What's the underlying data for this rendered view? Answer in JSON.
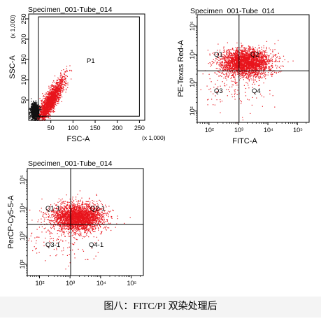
{
  "caption": "图八：FITC/PI 双染处理后",
  "chart_data": [
    {
      "type": "scatter",
      "title": "Specimen_001-Tube_014",
      "xlabel": "FSC-A",
      "ylabel": "SSC-A",
      "x_unit": "(x 1,000)",
      "y_unit": "(x 1,000)",
      "xscale": "linear",
      "yscale": "linear",
      "xlim": [
        0,
        262
      ],
      "ylim": [
        0,
        262
      ],
      "x_ticks": [
        50,
        100,
        150,
        200,
        250
      ],
      "y_ticks": [
        50,
        100,
        150,
        200,
        250
      ],
      "x_tick_labels": [
        "50",
        "100",
        "150",
        "200",
        "250"
      ],
      "y_tick_labels": [
        "50",
        "100",
        "150",
        "200",
        "250"
      ],
      "gate": {
        "name": "P1",
        "x_min": 22,
        "x_max": 250,
        "y_min": 10,
        "y_max": 255
      },
      "regions": [
        "P1"
      ],
      "grid": false,
      "colors": {
        "gated": "#e8141c",
        "ungated": "#111111"
      },
      "populations": [
        {
          "color": "gated",
          "count": 2200,
          "x_center": 40,
          "x_sd": 15,
          "y_from": "x",
          "slope": 1.6,
          "y_sd": 14
        },
        {
          "color": "ungated",
          "count": 900,
          "x_center": 13,
          "x_sd": 5,
          "y_center": 22,
          "y_sd": 10
        }
      ]
    },
    {
      "type": "scatter",
      "title": "Specimen_001-Tube_014",
      "xlabel": "FITC-A",
      "ylabel": "PE-Texas Red-A",
      "xscale": "log",
      "yscale": "log",
      "xlim": [
        1.6,
        5.4
      ],
      "ylim": [
        1.6,
        5.4
      ],
      "x_ticks": [
        2,
        3,
        4,
        5
      ],
      "y_ticks": [
        2,
        3,
        4,
        5
      ],
      "x_tick_labels": [
        "10²",
        "10³",
        "10⁴",
        "10⁵"
      ],
      "y_tick_labels": [
        "10²",
        "10³",
        "10⁴",
        "10⁵"
      ],
      "quadrant": {
        "x": 3.02,
        "y": 3.42
      },
      "regions": [
        "Q1",
        "Q2",
        "Q3",
        "Q4"
      ],
      "grid": false,
      "colors": {
        "points": "#e8141c"
      },
      "populations": [
        {
          "color": "points",
          "count": 3000,
          "x_center": 3.25,
          "x_sd": 0.42,
          "y_center": 3.72,
          "y_sd": 0.24
        },
        {
          "color": "points",
          "count": 130,
          "x_center": 2.8,
          "x_sd": 0.55,
          "y_center": 2.9,
          "y_sd": 0.45
        }
      ]
    },
    {
      "type": "scatter",
      "title": "Specimen_001-Tube_014",
      "xlabel": "",
      "ylabel": "PerCP-Cy5-5-A",
      "xscale": "log",
      "yscale": "log",
      "xlim": [
        1.6,
        5.4
      ],
      "ylim": [
        1.6,
        5.4
      ],
      "x_ticks": [
        2,
        3,
        4,
        5
      ],
      "y_ticks": [
        2,
        3,
        4,
        5
      ],
      "x_tick_labels": [
        "10²",
        "10³",
        "10⁴",
        "10⁵"
      ],
      "y_tick_labels": [
        "10²",
        "10³",
        "10⁴",
        "10⁵"
      ],
      "quadrant": {
        "x": 3.02,
        "y": 3.42
      },
      "regions": [
        "Q1-1",
        "Q2-1",
        "Q3-1",
        "Q4-1"
      ],
      "grid": false,
      "colors": {
        "points": "#e8141c"
      },
      "populations": [
        {
          "color": "points",
          "count": 3000,
          "x_center": 3.25,
          "x_sd": 0.42,
          "y_center": 3.68,
          "y_sd": 0.24
        },
        {
          "color": "points",
          "count": 130,
          "x_center": 2.8,
          "x_sd": 0.55,
          "y_center": 2.85,
          "y_sd": 0.45
        }
      ]
    }
  ]
}
